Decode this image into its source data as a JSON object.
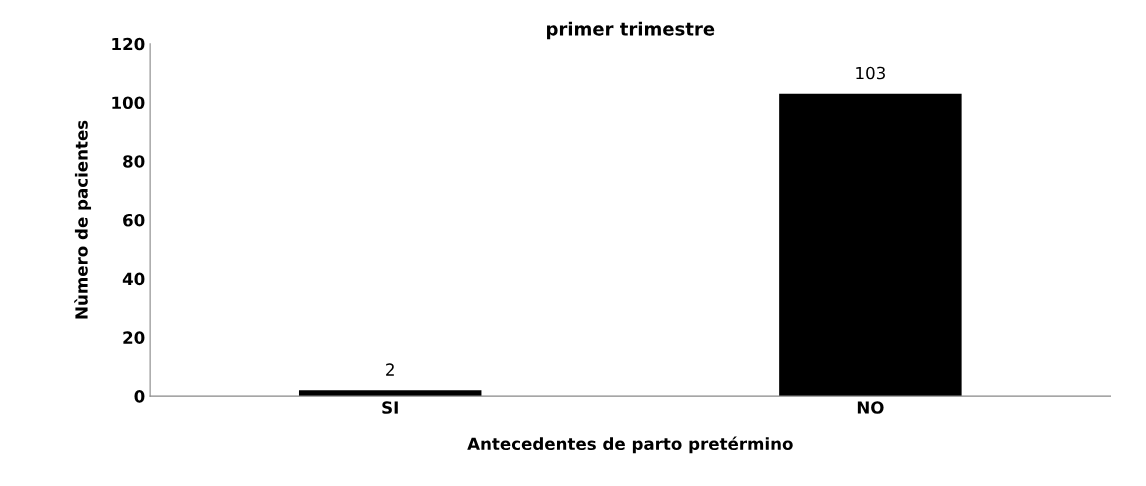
{
  "chart_data": {
    "type": "bar",
    "title": "primer trimestre",
    "xlabel": "Antecedentes de parto pretérmino",
    "ylabel": "Nùmero de pacientes",
    "categories": [
      "SI",
      "NO"
    ],
    "values": [
      2,
      103
    ],
    "color": "#000000",
    "ylim": [
      0,
      120
    ],
    "yticks": [
      0,
      20,
      40,
      60,
      80,
      100,
      120
    ],
    "grid": false,
    "data_labels": true
  }
}
